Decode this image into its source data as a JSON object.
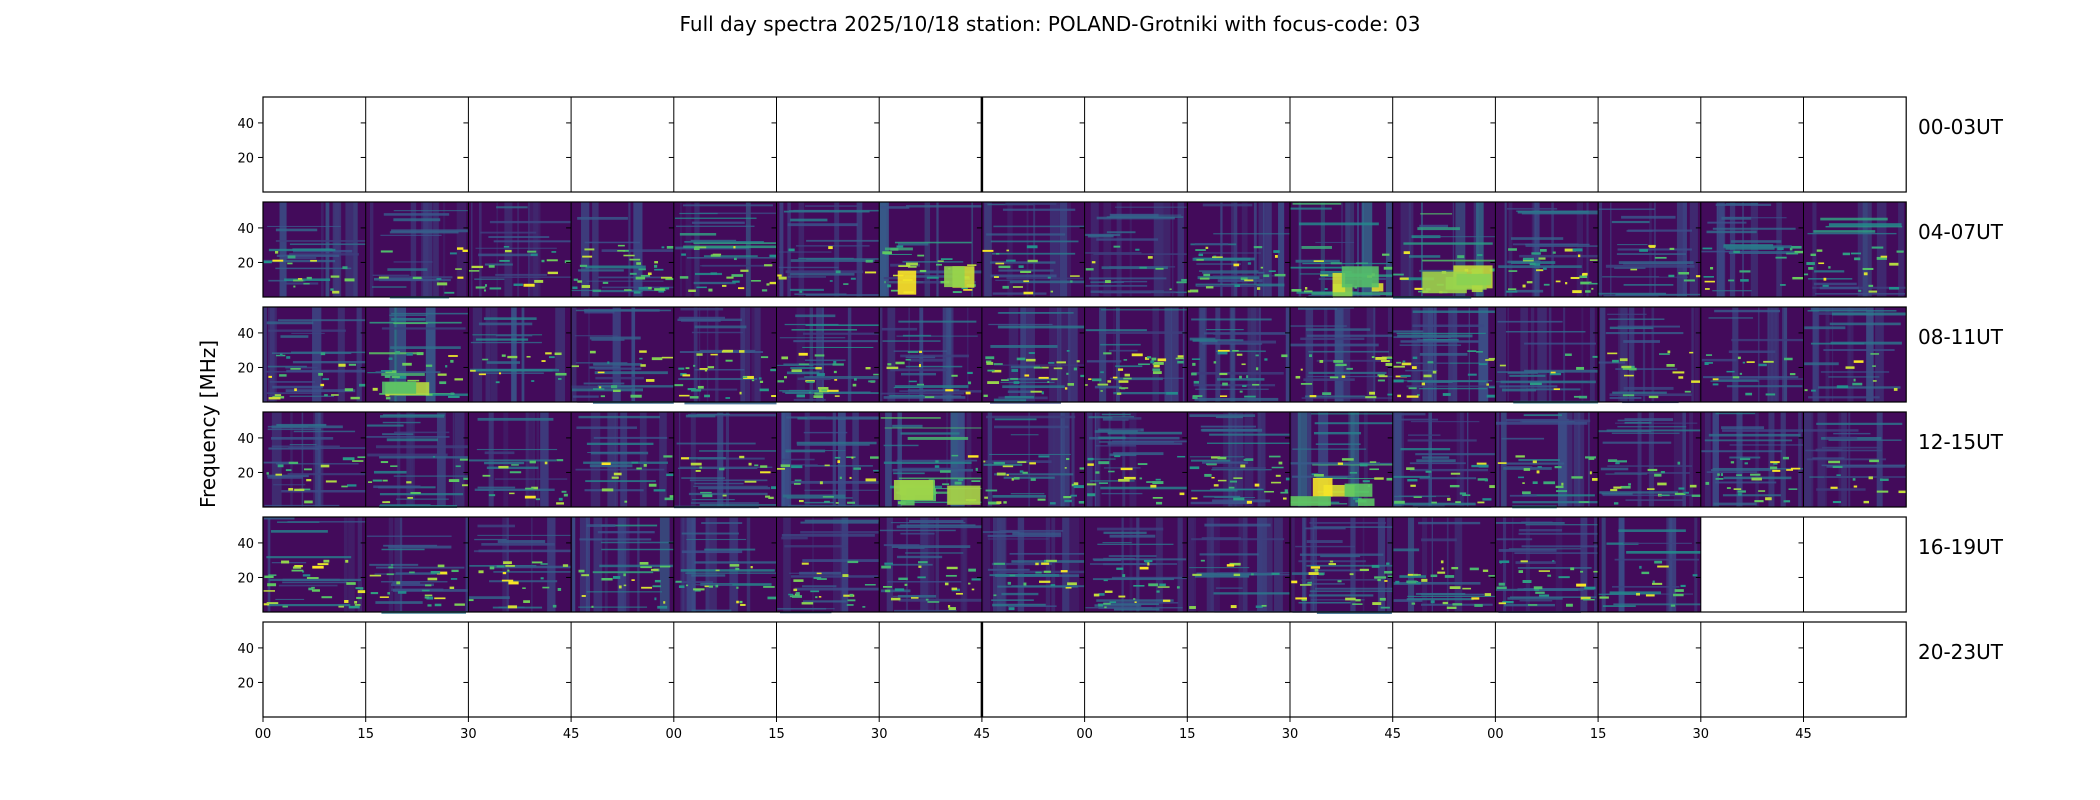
{
  "title": "Full day spectra 2025/10/18 station: POLAND-Grotniki with focus-code: 03",
  "chart_data": {
    "type": "heatmap",
    "title": "Full day spectra 2025/10/18 station: POLAND-Grotniki with focus-code: 03",
    "ylabel": "Frequency [MHz]",
    "xlabel": "",
    "colormap": "viridis",
    "colormap_stops": [
      "#440154",
      "#3b528b",
      "#21918c",
      "#5ec962",
      "#fde725"
    ],
    "ylim": [
      0,
      55
    ],
    "ytick_labels": [
      "40",
      "20"
    ],
    "ytick_values": [
      40,
      20
    ],
    "xtick_labels": [
      "00",
      "15",
      "30",
      "45",
      "00",
      "15",
      "30",
      "45",
      "00",
      "15",
      "30",
      "45",
      "00",
      "15",
      "30",
      "45"
    ],
    "panels_per_row": 16,
    "panel_minutes": 15,
    "rows": [
      {
        "label": "00-03UT",
        "data_panels": 0,
        "intensity": []
      },
      {
        "label": "04-07UT",
        "data_panels": 16,
        "intensity": [
          0.35,
          0.25,
          0.2,
          0.3,
          0.45,
          0.3,
          0.55,
          0.25,
          0.2,
          0.3,
          0.55,
          0.6,
          0.3,
          0.25,
          0.3,
          0.45
        ]
      },
      {
        "label": "08-11UT",
        "data_panels": 16,
        "intensity": [
          0.25,
          0.65,
          0.35,
          0.25,
          0.2,
          0.4,
          0.35,
          0.3,
          0.35,
          0.3,
          0.3,
          0.35,
          0.25,
          0.25,
          0.3,
          0.3
        ]
      },
      {
        "label": "12-15UT",
        "data_panels": 16,
        "intensity": [
          0.25,
          0.3,
          0.25,
          0.3,
          0.25,
          0.3,
          0.6,
          0.3,
          0.3,
          0.35,
          0.55,
          0.35,
          0.35,
          0.25,
          0.25,
          0.25
        ]
      },
      {
        "label": "16-19UT",
        "data_panels": 14,
        "intensity": [
          0.3,
          0.3,
          0.25,
          0.45,
          0.35,
          0.2,
          0.2,
          0.25,
          0.25,
          0.25,
          0.25,
          0.35,
          0.2,
          0.35
        ]
      },
      {
        "label": "20-23UT",
        "data_panels": 0,
        "intensity": []
      }
    ]
  }
}
